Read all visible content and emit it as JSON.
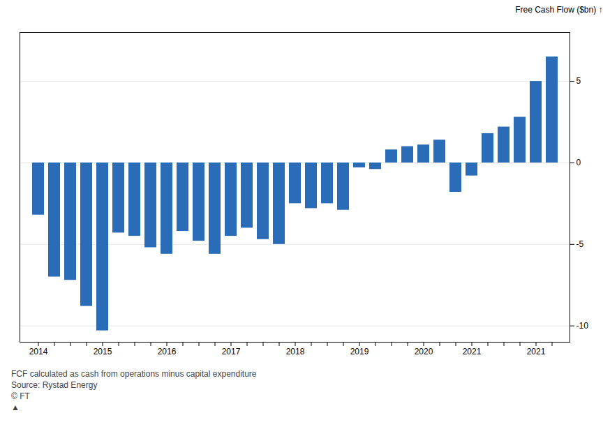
{
  "chart_data": {
    "type": "bar",
    "categories": [
      "2014",
      null,
      null,
      null,
      "2015",
      null,
      null,
      null,
      "2016",
      null,
      null,
      null,
      "2017",
      null,
      null,
      null,
      "2018",
      null,
      null,
      null,
      "2019",
      null,
      null,
      null,
      "2020",
      null,
      null,
      "2021",
      null,
      null,
      null,
      "2021",
      null
    ],
    "values": [
      -3.2,
      -7.0,
      -7.2,
      -8.8,
      -10.3,
      -4.3,
      -4.5,
      -5.2,
      -5.6,
      -4.2,
      -4.8,
      -5.6,
      -4.5,
      -4.0,
      -4.7,
      -5.0,
      -2.5,
      -2.8,
      -2.5,
      -2.9,
      -0.3,
      -0.4,
      0.8,
      1.0,
      1.1,
      1.4,
      -1.8,
      -0.8,
      1.8,
      2.2,
      2.8,
      5.0,
      6.5
    ],
    "color": "#2b6cb8",
    "ylabel": "Free Cash Flow ($bn)",
    "ylim": [
      -11.0,
      8.0
    ],
    "yticks": [
      -10,
      -5,
      0,
      5
    ],
    "grid": true,
    "annotations": [
      "FCF calculated as cash from operations minus capital expenditure",
      "Source: Rystad Energy",
      "© FT",
      "▲"
    ]
  }
}
